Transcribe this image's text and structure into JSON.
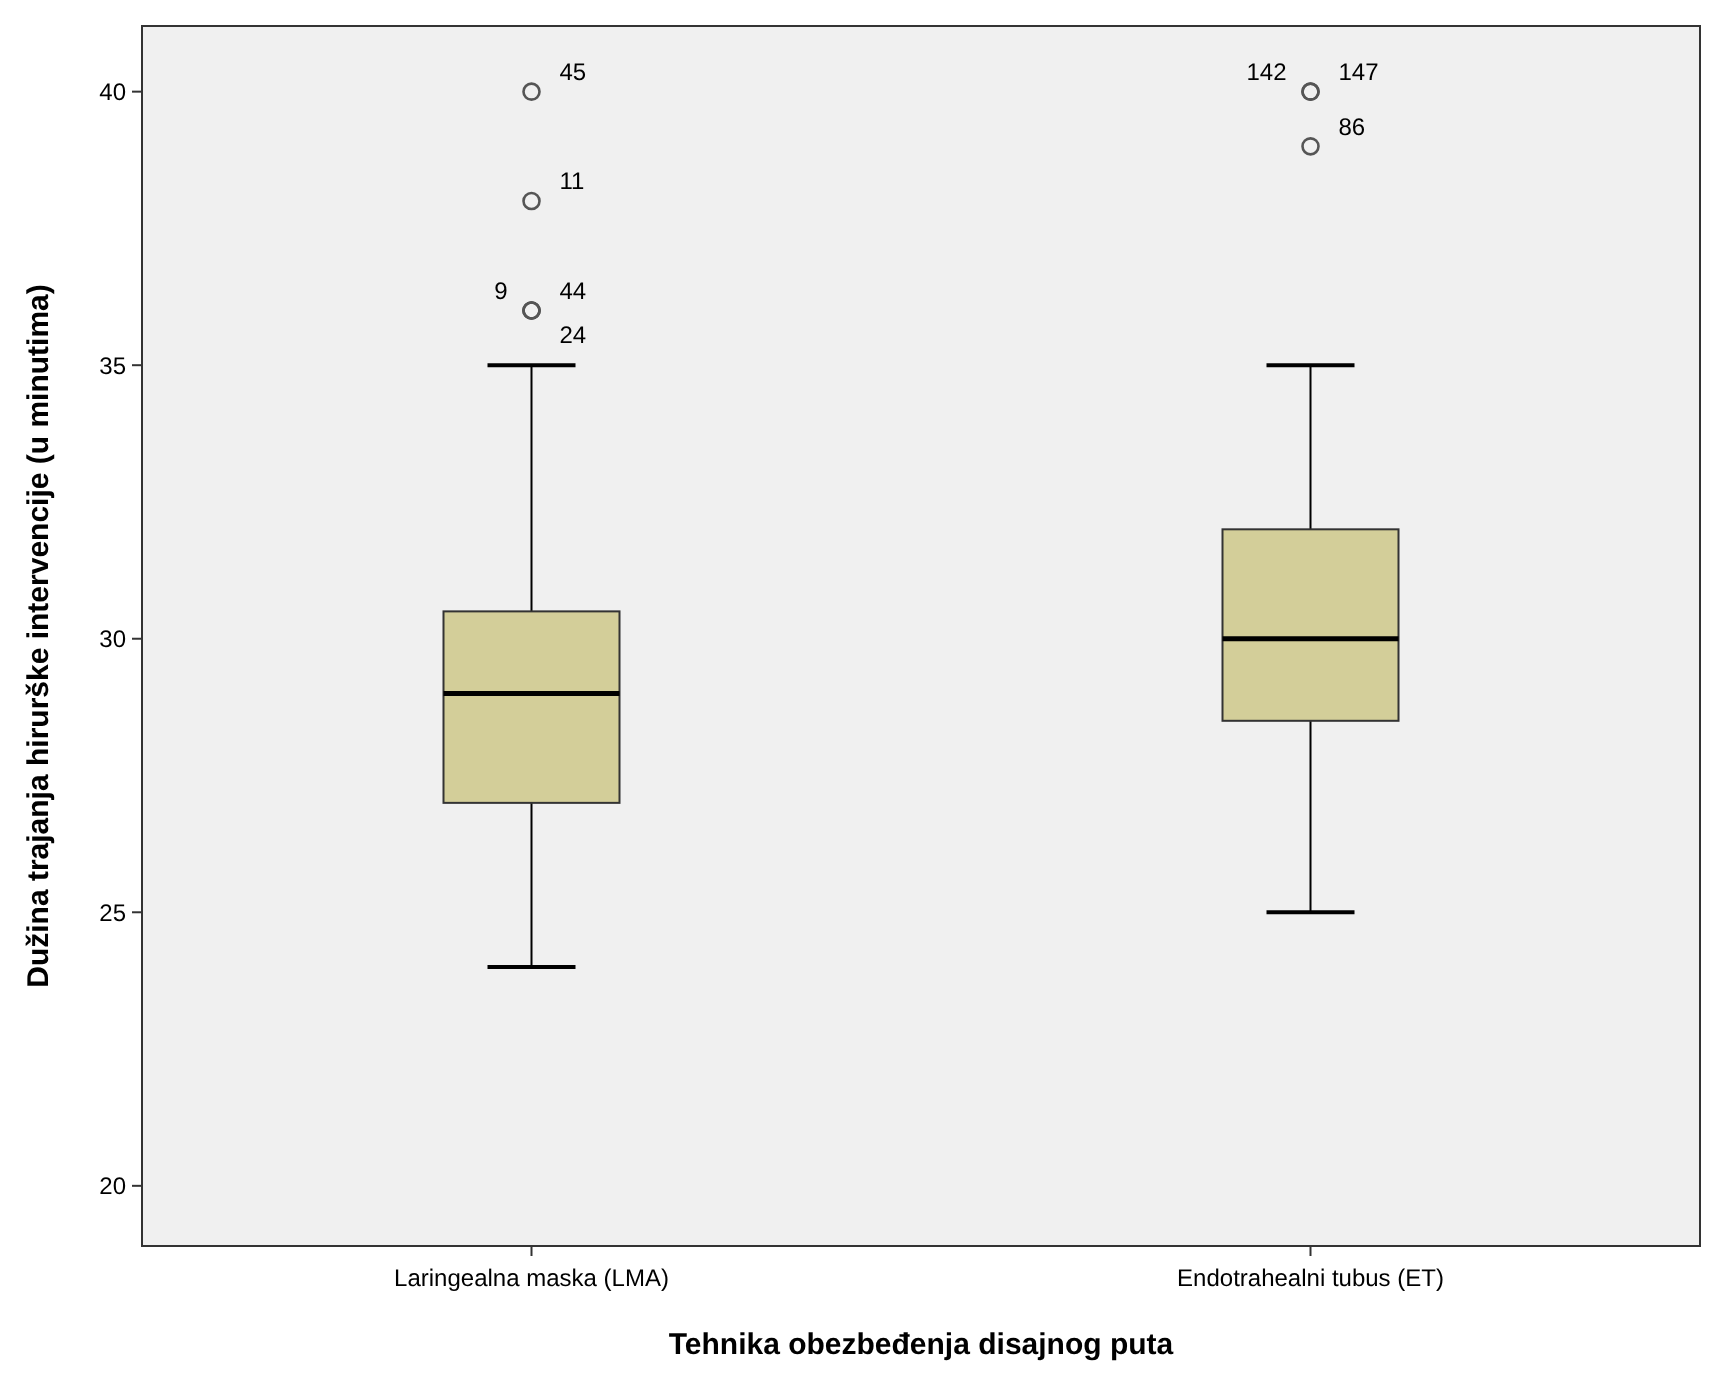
{
  "chart_data": {
    "type": "box",
    "xlabel": "Tehnika obezbeđenja disajnog puta",
    "ylabel": "Dužina trajanja hirurške intervencije (u minutima)",
    "categories": [
      "Laringealna maska (LMA)",
      "Endotrahealni tubus (ET)"
    ],
    "color": "#d3ce99",
    "boxes": [
      {
        "low": 24,
        "q1": 27,
        "median": 29,
        "q3": 30.5,
        "high": 35,
        "outliers": [
          40,
          38,
          36,
          36,
          36
        ]
      },
      {
        "low": 25,
        "q1": 28.5,
        "median": 30,
        "q3": 32,
        "high": 35,
        "outliers": [
          40,
          40,
          39
        ]
      }
    ],
    "ylim": [
      18.9,
      41.2
    ],
    "yticks": [
      20,
      25,
      30,
      35,
      40
    ],
    "grid": false,
    "annotations": [
      "45",
      "11",
      "44",
      "9",
      "24",
      "147",
      "142",
      "86"
    ]
  }
}
